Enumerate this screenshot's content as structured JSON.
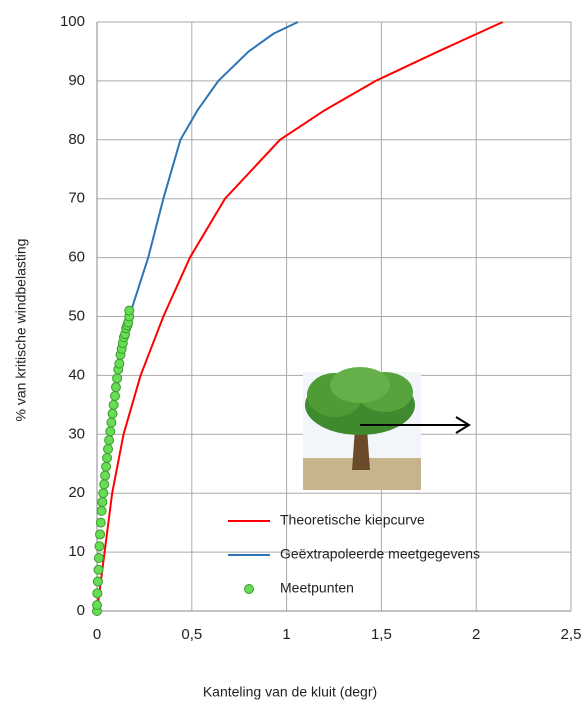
{
  "chart_data": {
    "type": "line",
    "x_label": "Kanteling van de kluit (degr)",
    "y_label": "% van kritische windbelasting",
    "xlim": [
      0,
      2.5
    ],
    "xticks": [
      0,
      {
        "value": 0.5,
        "label": "0,5"
      },
      1,
      {
        "value": 1.5,
        "label": "1,5"
      },
      2,
      {
        "value": 2.5,
        "label": "2,5"
      }
    ],
    "ylim": [
      0,
      100
    ],
    "yticks": [
      0,
      10,
      20,
      30,
      40,
      50,
      60,
      70,
      80,
      90,
      100
    ],
    "grid": true,
    "legend": "lower right",
    "series": [
      {
        "name": "Theoretische kiepcurve",
        "color": "#ff0000",
        "kind": "line",
        "x": [
          0,
          0.02,
          0.04,
          0.08,
          0.14,
          0.23,
          0.35,
          0.49,
          0.675,
          0.965,
          1.2,
          1.47,
          1.8,
          2.14
        ],
        "values": [
          0,
          5,
          10,
          20,
          30,
          40,
          50,
          60,
          70,
          80,
          85,
          90,
          95,
          100
        ]
      },
      {
        "name": "Geëxtrapoleerde meetgegevens",
        "color": "#2e75b6",
        "kind": "line",
        "x": [
          0.17,
          0.22,
          0.27,
          0.35,
          0.44,
          0.53,
          0.64,
          0.8,
          0.93,
          1.06
        ],
        "values": [
          50,
          55,
          60,
          70,
          80,
          85,
          90,
          95,
          98,
          100
        ]
      },
      {
        "name": "Meetpunten",
        "color": "#66dd55",
        "kind": "scatter",
        "x": [
          0,
          0,
          0.002,
          0.005,
          0.008,
          0.01,
          0.013,
          0.016,
          0.02,
          0.024,
          0.028,
          0.033,
          0.038,
          0.043,
          0.048,
          0.053,
          0.058,
          0.064,
          0.07,
          0.076,
          0.082,
          0.088,
          0.095,
          0.1,
          0.106,
          0.112,
          0.118,
          0.124,
          0.13,
          0.136,
          0.142,
          0.148,
          0.154,
          0.16,
          0.165,
          0.17,
          0.17
        ],
        "values": [
          0,
          1,
          3,
          5,
          7,
          9,
          11,
          13,
          15,
          17,
          18.5,
          20,
          21.5,
          23,
          24.5,
          26,
          27.5,
          29,
          30.5,
          32,
          33.5,
          35,
          36.5,
          38,
          39.5,
          41,
          42,
          43.5,
          44.5,
          45.5,
          46.5,
          47,
          48,
          48.5,
          49,
          50,
          51
        ]
      }
    ]
  }
}
